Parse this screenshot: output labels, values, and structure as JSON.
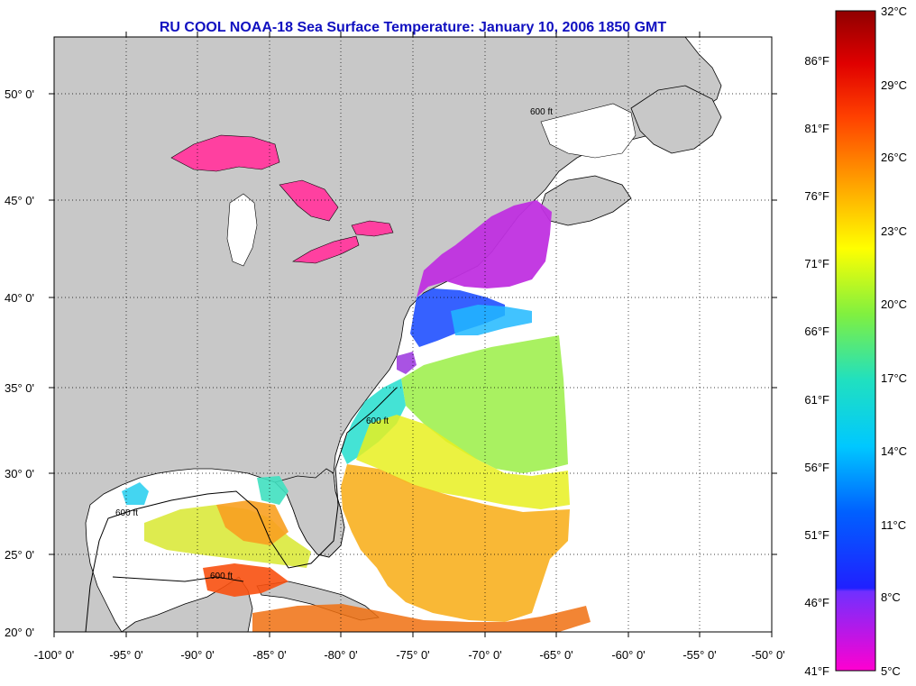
{
  "title": "RU COOL  NOAA-18  Sea Surface Temperature:  January 10, 2006 1850 GMT",
  "map": {
    "lat_ticks": [
      "50° 0'",
      "45° 0'",
      "40° 0'",
      "35° 0'",
      "30° 0'",
      "25° 0'",
      "20° 0'"
    ],
    "lon_ticks": [
      "-100° 0'",
      "-95° 0'",
      "-90° 0'",
      "-85° 0'",
      "-80° 0'",
      "-75° 0'",
      "-70° 0'",
      "-65° 0'",
      "-60° 0'",
      "-55° 0'",
      "-50° 0'"
    ],
    "isobath_label": "600 ft",
    "colors": {
      "land": "#c8c8c8",
      "water_nodata": "#ffffff",
      "grid": "#000000"
    }
  },
  "colorbar": {
    "celsius": [
      "32°C",
      "29°C",
      "26°C",
      "23°C",
      "20°C",
      "17°C",
      "14°C",
      "11°C",
      "8°C",
      "5°C"
    ],
    "fahrenheit": [
      "86°F",
      "81°F",
      "76°F",
      "71°F",
      "66°F",
      "61°F",
      "56°F",
      "51°F",
      "46°F",
      "41°F"
    ],
    "range_c": [
      5,
      32
    ]
  }
}
